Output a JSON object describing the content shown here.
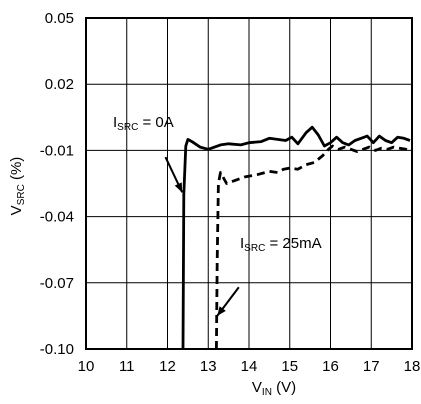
{
  "chart_data": {
    "type": "line",
    "title": "",
    "xlabel": {
      "main": "V",
      "sub": "IN",
      "unit": " (V)"
    },
    "ylabel": {
      "main": "V",
      "sub": "SRC",
      "unit": " (%)"
    },
    "xlim": [
      10,
      18
    ],
    "ylim": [
      -0.1,
      0.05
    ],
    "x_ticks": [
      10,
      11,
      12,
      13,
      14,
      15,
      16,
      17,
      18
    ],
    "x_tick_labels": [
      "10",
      "11",
      "12",
      "13",
      "14",
      "15",
      "16",
      "17",
      "18"
    ],
    "y_ticks": [
      0.05,
      0.02,
      -0.01,
      -0.04,
      -0.07,
      -0.1
    ],
    "y_tick_labels": [
      "0.05",
      "0.02",
      "-0.01",
      "-0.04",
      "-0.07",
      "-0.10"
    ],
    "grid": true,
    "series": [
      {
        "name": "ISRC = 0A",
        "style": "solid",
        "x": [
          12.38,
          12.4,
          12.45,
          12.5,
          12.6,
          12.8,
          13.0,
          13.3,
          13.5,
          13.8,
          14.0,
          14.3,
          14.5,
          14.7,
          14.9,
          15.05,
          15.2,
          15.4,
          15.55,
          15.7,
          15.85,
          16.0,
          16.15,
          16.3,
          16.45,
          16.6,
          16.75,
          16.9,
          17.05,
          17.2,
          17.35,
          17.5,
          17.65,
          17.8,
          17.95
        ],
        "y": [
          -0.1,
          -0.03,
          -0.008,
          -0.005,
          -0.006,
          -0.0085,
          -0.0095,
          -0.0075,
          -0.007,
          -0.0075,
          -0.0065,
          -0.006,
          -0.0045,
          -0.005,
          -0.0055,
          -0.004,
          -0.007,
          -0.002,
          0.0005,
          -0.003,
          -0.008,
          -0.0065,
          -0.004,
          -0.0065,
          -0.0075,
          -0.0055,
          -0.0045,
          -0.0035,
          -0.0065,
          -0.0035,
          -0.0055,
          -0.0065,
          -0.004,
          -0.0045,
          -0.0055
        ]
      },
      {
        "name": "ISRC = 25mA",
        "style": "dashed",
        "x": [
          13.2,
          13.22,
          13.25,
          13.3,
          13.45,
          13.6,
          13.9,
          14.2,
          14.5,
          14.7,
          14.85,
          15.0,
          15.2,
          15.4,
          15.6,
          15.8,
          15.95,
          16.05,
          16.2,
          16.35,
          16.5,
          16.65,
          16.8,
          16.95,
          17.1,
          17.25,
          17.4,
          17.55,
          17.7,
          17.85,
          17.95
        ],
        "y": [
          -0.1,
          -0.06,
          -0.025,
          -0.02,
          -0.025,
          -0.024,
          -0.022,
          -0.021,
          -0.0195,
          -0.02,
          -0.0185,
          -0.018,
          -0.0185,
          -0.0165,
          -0.0155,
          -0.0125,
          -0.0095,
          -0.008,
          -0.0095,
          -0.0085,
          -0.0095,
          -0.0105,
          -0.0095,
          -0.0085,
          -0.01,
          -0.009,
          -0.0095,
          -0.0085,
          -0.009,
          -0.0095,
          -0.0105
        ]
      }
    ],
    "annotations": [
      {
        "main": "I",
        "sub": "SRC",
        "rest": " = 0A",
        "arrow_from": [
          11.95,
          -0.013
        ],
        "arrow_to": [
          12.36,
          -0.029
        ]
      },
      {
        "main": "I",
        "sub": "SRC",
        "rest": " = 25mA",
        "arrow_from": [
          13.75,
          -0.072
        ],
        "arrow_to": [
          13.22,
          -0.085
        ]
      }
    ]
  }
}
